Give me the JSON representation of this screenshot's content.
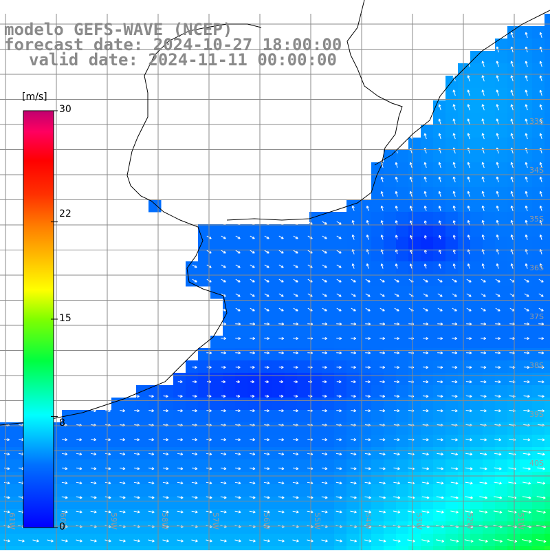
{
  "title": {
    "model": "modelo GEFS-WAVE (NCEP)",
    "forecast": "forecast date: 2024-10-27 18:00:00",
    "valid": "valid date: 2024-11-11 00:00:00"
  },
  "colorbar": {
    "unit": "[m/s]",
    "ticks": [
      "30",
      "22",
      "15",
      "8",
      "0"
    ],
    "tick_values": [
      30,
      22,
      15,
      8,
      0
    ],
    "range": [
      0,
      30
    ],
    "colors": [
      "#0000ff",
      "#00a0ff",
      "#00ffff",
      "#00ff00",
      "#a0ff00",
      "#ffff00",
      "#ffa000",
      "#ff4000",
      "#ff0000",
      "#ff0060",
      "#c00070"
    ]
  },
  "map": {
    "variable": "wind speed",
    "lon_labels": [
      "61W",
      "60W",
      "59W",
      "58W",
      "57W",
      "56W",
      "55W",
      "54W",
      "53W",
      "52W",
      "51W"
    ],
    "lat_labels": [
      "33S",
      "34S",
      "35S",
      "36S",
      "37S",
      "38S",
      "39S",
      "40S"
    ],
    "land_color": "#ffffff",
    "coast_color": "#000000",
    "grid_color": "#808080",
    "arrow_color": "#ffffff"
  }
}
